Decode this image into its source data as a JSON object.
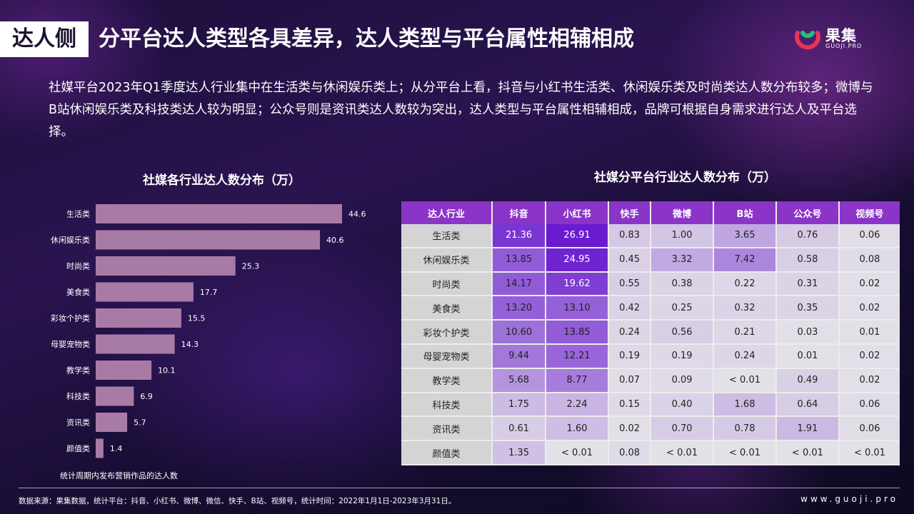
{
  "header": {
    "badge": "达人侧",
    "title": "分平台达人类型各具差异，达人类型与平台属性相辅相成",
    "logo_cn": "果集",
    "logo_en": "GUOJI.PRO"
  },
  "intro": "社媒平台2023年Q1季度达人行业集中在生活类与休闲娱乐类上；从分平台上看，抖音与小红书生活类、休闲娱乐类及时尚类达人数分布较多；微博与B站休闲娱乐类及科技类达人较为明显；公众号则是资讯类达人数较为突出，达人类型与平台属性相辅相成，品牌可根据自身需求进行达人及平台选择。",
  "bar_section": {
    "title": "社媒各行业达人数分布（万）",
    "note": "统计周期内发布营销作品的达人数"
  },
  "table_section": {
    "title": "社媒分平台行业达人数分布（万）"
  },
  "colors": {
    "bar": "#a87ba6",
    "header": "#8a34c8",
    "cell_base": "#e4e2e8",
    "cell_max": "#6a1bd0"
  },
  "chart_data": [
    {
      "type": "bar",
      "orientation": "horizontal",
      "title": "社媒各行业达人数分布（万）",
      "categories": [
        "生活类",
        "休闲娱乐类",
        "时尚类",
        "美食类",
        "彩妆个护类",
        "母婴宠物类",
        "教学类",
        "科技类",
        "资讯类",
        "颜值类"
      ],
      "values": [
        44.6,
        40.6,
        25.3,
        17.7,
        15.5,
        14.3,
        10.1,
        6.9,
        5.7,
        1.4
      ],
      "labels": [
        "44.6",
        "40.6",
        "25.3",
        "17.7",
        "15.5",
        "14.3",
        "10.1",
        "6.9",
        "5.7",
        "1.4"
      ],
      "xlim": [
        0,
        50
      ],
      "grid": false
    },
    {
      "type": "heatmap",
      "title": "社媒分平台行业达人数分布（万）",
      "corner": "达人行业",
      "columns": [
        "抖音",
        "小红书",
        "快手",
        "微博",
        "B站",
        "公众号",
        "视频号"
      ],
      "rows": [
        {
          "name": "生活类",
          "cells": [
            "21.36",
            "26.91",
            "0.83",
            "1.00",
            "3.65",
            "0.76",
            "0.06"
          ],
          "values": [
            21.36,
            26.91,
            0.83,
            1.0,
            3.65,
            0.76,
            0.06
          ]
        },
        {
          "name": "休闲娱乐类",
          "cells": [
            "13.85",
            "24.95",
            "0.45",
            "3.32",
            "7.42",
            "0.58",
            "0.08"
          ],
          "values": [
            13.85,
            24.95,
            0.45,
            3.32,
            7.42,
            0.58,
            0.08
          ]
        },
        {
          "name": "时尚类",
          "cells": [
            "14.17",
            "19.62",
            "0.55",
            "0.38",
            "0.22",
            "0.31",
            "0.02"
          ],
          "values": [
            14.17,
            19.62,
            0.55,
            0.38,
            0.22,
            0.31,
            0.02
          ]
        },
        {
          "name": "美食类",
          "cells": [
            "13.20",
            "13.10",
            "0.42",
            "0.25",
            "0.32",
            "0.35",
            "0.02"
          ],
          "values": [
            13.2,
            13.1,
            0.42,
            0.25,
            0.32,
            0.35,
            0.02
          ]
        },
        {
          "name": "彩妆个护类",
          "cells": [
            "10.60",
            "13.85",
            "0.24",
            "0.56",
            "0.21",
            "0.03",
            "0.01"
          ],
          "values": [
            10.6,
            13.85,
            0.24,
            0.56,
            0.21,
            0.03,
            0.01
          ]
        },
        {
          "name": "母婴宠物类",
          "cells": [
            "9.44",
            "12.21",
            "0.19",
            "0.19",
            "0.24",
            "0.01",
            "0.02"
          ],
          "values": [
            9.44,
            12.21,
            0.19,
            0.19,
            0.24,
            0.01,
            0.02
          ]
        },
        {
          "name": "教学类",
          "cells": [
            "5.68",
            "8.77",
            "0.07",
            "0.09",
            "< 0.01",
            "0.49",
            "0.02"
          ],
          "values": [
            5.68,
            8.77,
            0.07,
            0.09,
            0.005,
            0.49,
            0.02
          ]
        },
        {
          "name": "科技类",
          "cells": [
            "1.75",
            "2.24",
            "0.15",
            "0.40",
            "1.68",
            "0.64",
            "0.06"
          ],
          "values": [
            1.75,
            2.24,
            0.15,
            0.4,
            1.68,
            0.64,
            0.06
          ]
        },
        {
          "name": "资讯类",
          "cells": [
            "0.61",
            "1.60",
            "0.02",
            "0.70",
            "0.78",
            "1.91",
            "0.06"
          ],
          "values": [
            0.61,
            1.6,
            0.02,
            0.7,
            0.78,
            1.91,
            0.06
          ]
        },
        {
          "name": "颜值类",
          "cells": [
            "1.35",
            "< 0.01",
            "0.08",
            "< 0.01",
            "< 0.01",
            "< 0.01",
            "< 0.01"
          ],
          "values": [
            1.35,
            0.005,
            0.08,
            0.005,
            0.005,
            0.005,
            0.005
          ]
        }
      ]
    }
  ],
  "footer": {
    "source": "数据来源：果集数据，统计平台：抖音、小红书、微博、微信、快手、B站、视频号，统计时间：2022年1月1日-2023年3月31日。",
    "url": "www.guoji.pro"
  }
}
